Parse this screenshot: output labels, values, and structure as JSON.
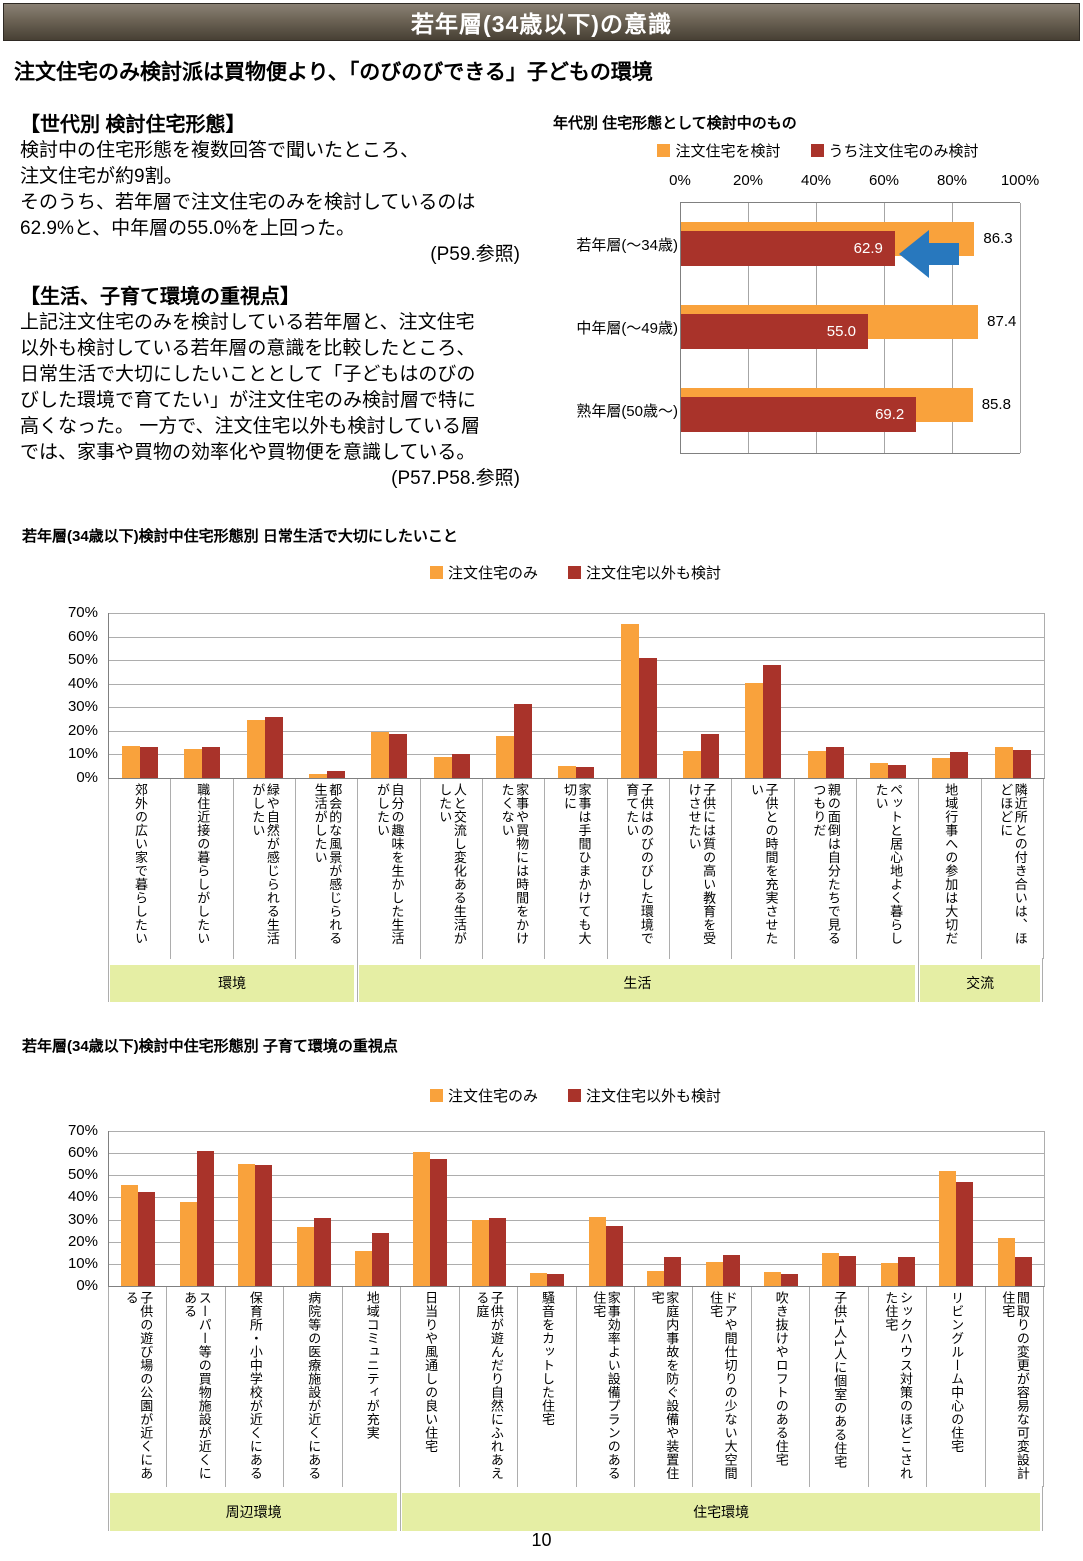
{
  "header": {
    "title": "若年層(34歳以下)の意識"
  },
  "headline": "注文住宅のみ検討派は買物便より、「のびのびできる」子どもの環境",
  "left_panel": {
    "section1": {
      "heading": "【世代別 検討住宅形態】",
      "lines": [
        "検討中の住宅形態を複数回答で聞いたところ、",
        "注文住宅が約9割。",
        "そのうち、若年層で注文住宅のみを検討しているのは",
        "62.9%と、中年層の55.0%を上回った。"
      ],
      "ref": "(P59.参照)"
    },
    "section2": {
      "heading": "【生活、子育て環境の重視点】",
      "lines": [
        "上記注文住宅のみを検討している若年層と、注文住宅",
        "以外も検討している若年層の意識を比較したところ、",
        "日常生活で大切にしたいこととして「子どもはのびの",
        "びした環境で育てたい」が注文住宅のみ検討層で特に",
        "高くなった。 一方で、注文住宅以外も検討している層",
        "では、家事や買物の効率化や買物便を意識している。"
      ],
      "ref": "(P57.P58.参照)"
    }
  },
  "chart_data": [
    {
      "type": "bar",
      "orientation": "horizontal",
      "title": "年代別 住宅形態として検討中のもの",
      "categories": [
        "若年層(～34歳)",
        "中年層(～49歳)",
        "熟年層(50歳～)"
      ],
      "series": [
        {
          "name": "注文住宅を検討",
          "color": "#F9A23C",
          "values": [
            86.3,
            87.4,
            85.8
          ]
        },
        {
          "name": "うち注文住宅のみ検討",
          "color": "#A9332A",
          "values": [
            62.9,
            55.0,
            69.2
          ]
        }
      ],
      "xlim": [
        0,
        100
      ],
      "x_ticks": [
        "0%",
        "20%",
        "40%",
        "60%",
        "80%",
        "100%"
      ],
      "grid": true,
      "legend_position": "top",
      "annotation": {
        "shape": "block-arrow-left",
        "color": "#2878BE",
        "target_category": 0,
        "points_at_value": 62.9
      }
    },
    {
      "type": "bar",
      "orientation": "vertical",
      "title": "若年層(34歳以下)検討中住宅形態別 日常生活で大切にしたいこと",
      "categories": [
        "郊外の広い家で暮らしたい",
        "職住近接の暮らしがしたい",
        "緑や自然が感じられる生活がしたい",
        "都会的な風景が感じられる生活がしたい",
        "自分の趣味を生かした生活がしたい",
        "人と交流し変化ある生活がしたい",
        "家事や買物には時間をかけたくない",
        "家事は手間ひまかけても大切に",
        "子供はのびのびした環境で育てたい",
        "子供には質の高い教育を受けさせたい",
        "子供との時間を充実させたい",
        "親の面倒は自分たちで見るつもりだ",
        "ペットと居心地よく暮らしたい",
        "地域行事への参加は大切だ",
        "隣近所との付き合いは、ほどほどに"
      ],
      "series": [
        {
          "name": "注文住宅のみ",
          "color": "#F9A23C",
          "values": [
            13.5,
            12.5,
            24.5,
            1.5,
            19.5,
            9.0,
            18.0,
            5.0,
            65.5,
            11.5,
            40.5,
            11.5,
            6.5,
            8.5,
            13.0
          ]
        },
        {
          "name": "注文住宅以外も検討",
          "color": "#A9332A",
          "values": [
            13.0,
            13.0,
            26.0,
            3.0,
            18.5,
            10.0,
            31.5,
            4.5,
            51.0,
            18.5,
            48.0,
            13.0,
            5.5,
            11.0,
            12.0
          ]
        }
      ],
      "ylim": [
        0,
        70
      ],
      "y_ticks": [
        "70%",
        "60%",
        "50%",
        "40%",
        "30%",
        "20%",
        "10%",
        "0%"
      ],
      "grid": true,
      "legend_position": "top",
      "band_color": "#E5EEA4",
      "groups": [
        {
          "label": "環境",
          "from": 0,
          "to": 3
        },
        {
          "label": "生活",
          "from": 4,
          "to": 12
        },
        {
          "label": "交流",
          "from": 13,
          "to": 14
        }
      ]
    },
    {
      "type": "bar",
      "orientation": "vertical",
      "title": "若年層(34歳以下)検討中住宅形態別 子育て環境の重視点",
      "categories": [
        "子供の遊び場の公園が近くにある",
        "スーパー等の買物施設が近くにある",
        "保育所・小中学校が近くにある",
        "病院等の医療施設が近くにある",
        "地域コミュニティが充実",
        "日当りや風通しの良い住宅",
        "子供が遊んだり自然にふれあえる庭",
        "騒音をカットした住宅",
        "家事効率よい設備プランのある住宅",
        "家庭内事故を防ぐ設備や装置住宅",
        "ドアや間仕切りの少ない大空間住宅",
        "吹き抜けやロフトのある住宅",
        "子供1人1人に個室のある住宅",
        "シックハウス対策のほどこされた住宅",
        "リビングルーム中心の住宅",
        "間取りの変更が容易な可変設計住宅"
      ],
      "series": [
        {
          "name": "注文住宅のみ",
          "color": "#F9A23C",
          "values": [
            45.5,
            38.0,
            55.0,
            26.5,
            16.0,
            60.5,
            30.0,
            6.0,
            31.0,
            7.0,
            11.0,
            6.5,
            15.0,
            10.5,
            52.0,
            21.5
          ]
        },
        {
          "name": "注文住宅以外も検討",
          "color": "#A9332A",
          "values": [
            42.5,
            61.0,
            54.5,
            30.5,
            24.0,
            57.5,
            30.5,
            5.5,
            27.0,
            13.0,
            14.0,
            5.5,
            13.5,
            13.0,
            47.0,
            13.0
          ]
        }
      ],
      "ylim": [
        0,
        70
      ],
      "y_ticks": [
        "70%",
        "60%",
        "50%",
        "40%",
        "30%",
        "20%",
        "10%",
        "0%"
      ],
      "grid": true,
      "legend_position": "top",
      "band_color": "#E5EEA4",
      "groups": [
        {
          "label": "周辺環境",
          "from": 0,
          "to": 4
        },
        {
          "label": "住宅環境",
          "from": 5,
          "to": 15
        }
      ]
    }
  ],
  "page_number": "10"
}
